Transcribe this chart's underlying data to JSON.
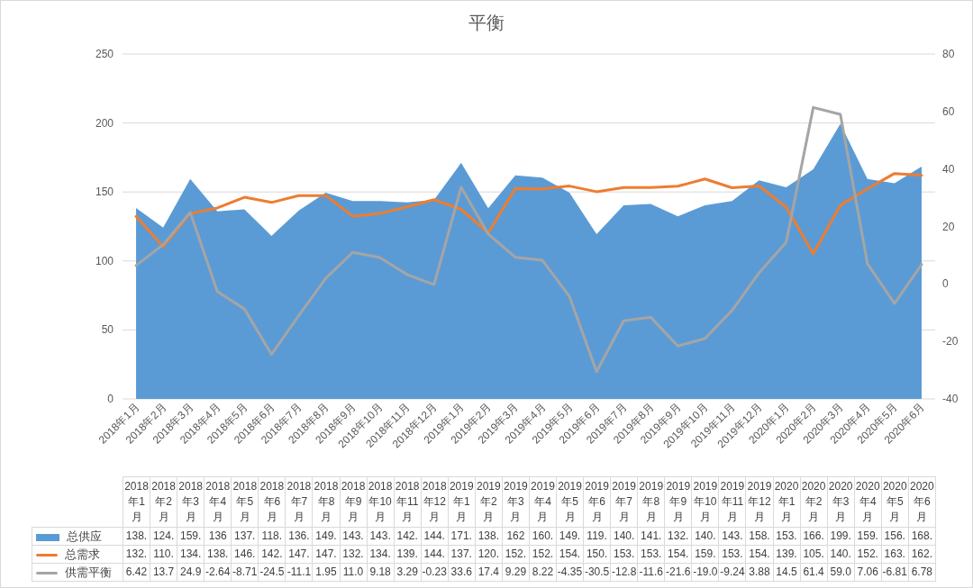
{
  "chart_data": {
    "type": "area",
    "title": "平衡",
    "categories": [
      "2018年1月",
      "2018年2月",
      "2018年3月",
      "2018年4月",
      "2018年5月",
      "2018年6月",
      "2018年7月",
      "2018年8月",
      "2018年9月",
      "2018年10月",
      "2018年11月",
      "2018年12月",
      "2019年1月",
      "2019年2月",
      "2019年3月",
      "2019年4月",
      "2019年5月",
      "2019年6月",
      "2019年7月",
      "2019年8月",
      "2019年9月",
      "2019年10月",
      "2019年11月",
      "2019年12月",
      "2020年1月",
      "2020年2月",
      "2020年3月",
      "2020年4月",
      "2020年5月",
      "2020年6月"
    ],
    "series": [
      {
        "name": "总供应",
        "color": "#5b9bd5",
        "values": [
          138.4,
          124.2,
          159.4,
          136,
          137.4,
          118.2,
          136.4,
          149.4,
          143.4,
          143.4,
          142.4,
          144.3,
          171.1,
          138.2,
          162,
          160.4,
          149.4,
          119.4,
          140.4,
          141.4,
          132.4,
          140.4,
          143.4,
          158.4,
          153.4,
          166.4,
          199.4,
          159.4,
          156.4,
          168.4
        ],
        "value_labels": [
          "138.",
          "124.",
          "159.",
          "136",
          "137.",
          "118.",
          "136.",
          "149.",
          "143.",
          "143.",
          "142.",
          "144.",
          "171.",
          "138.",
          "162",
          "160.",
          "149.",
          "119.",
          "140.",
          "141.",
          "132.",
          "140.",
          "143.",
          "158.",
          "153.",
          "166.",
          "199.",
          "159.",
          "156.",
          "168."
        ]
      },
      {
        "name": "总需求",
        "type": "line",
        "color": "#ed7d31",
        "values": [
          132.3,
          110.4,
          134.4,
          138.4,
          146.2,
          142.4,
          147.4,
          147.4,
          132.4,
          134.4,
          139.2,
          144.4,
          137.4,
          120.4,
          152.4,
          152.3,
          154.3,
          150.2,
          153.3,
          153.3,
          154.2,
          159.4,
          153.1,
          154.4,
          139.0,
          105.2,
          140.4,
          152.3,
          163.4,
          162.1
        ],
        "value_labels": [
          "132.",
          "110.",
          "134.",
          "138.",
          "146.",
          "142.",
          "147.",
          "147.",
          "132.",
          "134.",
          "139.",
          "144.",
          "137.",
          "120.",
          "152.",
          "152.",
          "154.",
          "150.",
          "153.",
          "153.",
          "154.",
          "159.",
          "153.",
          "154.",
          "139.",
          "105.",
          "140.",
          "152.",
          "163.",
          "162."
        ]
      },
      {
        "name": "供需平衡",
        "type": "line",
        "axis": "y2",
        "color": "#a5a5a5",
        "values": [
          6.42,
          13.7,
          24.9,
          -2.64,
          -8.71,
          -24.5,
          -11.1,
          1.95,
          11.0,
          9.18,
          3.29,
          -0.23,
          33.6,
          17.4,
          9.29,
          8.22,
          -4.35,
          -30.5,
          -12.8,
          -11.6,
          -21.6,
          -19.0,
          -9.24,
          3.88,
          14.5,
          61.4,
          59.0,
          7.06,
          -6.81,
          6.78
        ],
        "value_labels": [
          "6.42",
          "13.7",
          "24.9",
          "-2.64",
          "-8.71",
          "-24.5",
          "-11.1",
          "1.95",
          "11.0",
          "9.18",
          "3.29",
          "-0.23",
          "33.6",
          "17.4",
          "9.29",
          "8.22",
          "-4.35",
          "-30.5",
          "-12.8",
          "-11.6",
          "-21.6",
          "-19.0",
          "-9.24",
          "3.88",
          "14.5",
          "61.4",
          "59.0",
          "7.06",
          "-6.81",
          "6.78"
        ]
      }
    ],
    "ylim": [
      0,
      250
    ],
    "yticks": [
      0,
      50,
      100,
      150,
      200,
      250
    ],
    "y2lim": [
      -40,
      80
    ],
    "y2ticks": [
      -40,
      -20,
      0,
      20,
      40,
      60,
      80
    ],
    "grid": "y",
    "legend": "bottom"
  }
}
